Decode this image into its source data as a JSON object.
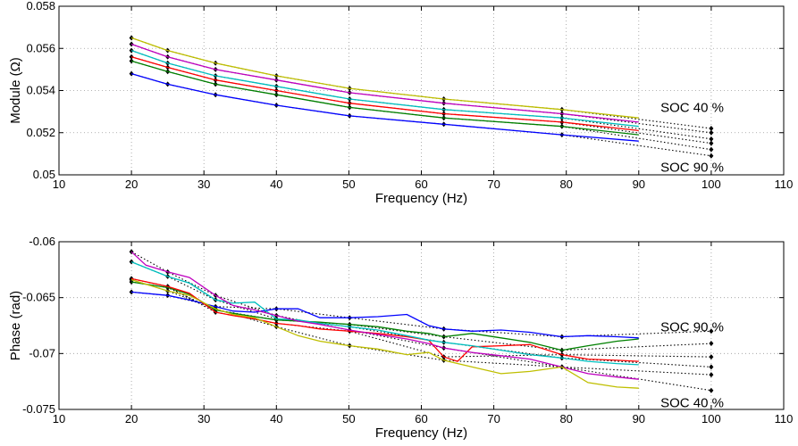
{
  "chart_data": [
    {
      "type": "line",
      "ylabel": "Module (Ω)",
      "xlabel": "Frequency (Hz)",
      "xlim": [
        10,
        110
      ],
      "ylim": [
        0.05,
        0.058
      ],
      "xticks": [
        "10",
        "20",
        "30",
        "40",
        "50",
        "60",
        "70",
        "80",
        "90",
        "100",
        "110"
      ],
      "yticks": [
        "0.05",
        "0.052",
        "0.054",
        "0.056",
        "0.058"
      ],
      "grid": true,
      "annotations": [
        {
          "text": "SOC 40 %",
          "x": 93,
          "y": 0.0532
        },
        {
          "text": "SOC 90 %",
          "x": 93,
          "y": 0.05035
        }
      ],
      "marker_x": [
        20,
        25,
        31.6,
        40,
        50.1,
        63.1,
        79.4,
        100
      ],
      "series": [
        {
          "color": "#bfbf00",
          "x": [
            20,
            25,
            31.6,
            40,
            50.1,
            63.1,
            79.4,
            90
          ],
          "values": [
            0.0565,
            0.0559,
            0.0553,
            0.0547,
            0.0541,
            0.0536,
            0.0531,
            0.0527
          ]
        },
        {
          "color": "#bf00bf",
          "x": [
            20,
            25,
            31.6,
            40,
            50.1,
            63.1,
            79.4,
            90
          ],
          "values": [
            0.0562,
            0.0556,
            0.055,
            0.0545,
            0.0539,
            0.0534,
            0.0529,
            0.0525
          ]
        },
        {
          "color": "#00bfbf",
          "x": [
            20,
            25,
            31.6,
            40,
            50.1,
            63.1,
            79.4,
            90
          ],
          "values": [
            0.0559,
            0.0553,
            0.0547,
            0.0542,
            0.0536,
            0.0531,
            0.0527,
            0.0523
          ]
        },
        {
          "color": "#ff0000",
          "x": [
            20,
            25,
            31.6,
            40,
            50.1,
            63.1,
            79.4,
            90
          ],
          "values": [
            0.0556,
            0.0551,
            0.0545,
            0.054,
            0.0534,
            0.0529,
            0.0525,
            0.0521
          ]
        },
        {
          "color": "#008000",
          "x": [
            20,
            25,
            31.6,
            40,
            50.1,
            63.1,
            79.4,
            90
          ],
          "values": [
            0.0554,
            0.0549,
            0.0543,
            0.0538,
            0.0532,
            0.0527,
            0.0523,
            0.0519
          ]
        },
        {
          "color": "#0000ff",
          "x": [
            20,
            25,
            31.6,
            40,
            50.1,
            63.1,
            79.4,
            90
          ],
          "values": [
            0.0548,
            0.0543,
            0.0538,
            0.0533,
            0.0528,
            0.0524,
            0.0519,
            0.0516
          ]
        }
      ],
      "extrapolated_values_100": [
        0.0522,
        0.052,
        0.0517,
        0.0515,
        0.0512,
        0.0509
      ]
    },
    {
      "type": "line",
      "ylabel": "Phase (rad)",
      "xlabel": "Frequency (Hz)",
      "xlim": [
        10,
        110
      ],
      "ylim": [
        -0.075,
        -0.06
      ],
      "xticks": [
        "10",
        "20",
        "30",
        "40",
        "50",
        "60",
        "70",
        "80",
        "90",
        "100",
        "110"
      ],
      "yticks": [
        "-0.06",
        "-0.065",
        "-0.07",
        "-0.075"
      ],
      "grid": true,
      "annotations": [
        {
          "text": "SOC 90 %",
          "x": 93,
          "y": -0.0676
        },
        {
          "text": "SOC 40 %",
          "x": 93,
          "y": -0.0744
        }
      ],
      "marker_x": [
        20,
        25,
        31.6,
        40,
        50.1,
        63.1,
        79.4,
        100
      ],
      "series": [
        {
          "color": "#0000ff",
          "x": [
            20,
            25,
            28,
            31.6,
            34,
            37,
            40,
            43,
            46,
            50.1,
            54,
            58,
            61,
            63.1,
            67,
            71,
            75,
            79.4,
            83,
            87,
            90
          ],
          "values": [
            -0.0645,
            -0.0648,
            -0.0652,
            -0.0658,
            -0.0662,
            -0.0663,
            -0.066,
            -0.066,
            -0.0668,
            -0.0668,
            -0.0667,
            -0.0665,
            -0.0675,
            -0.0678,
            -0.068,
            -0.0679,
            -0.0681,
            -0.0685,
            -0.0684,
            -0.0685,
            -0.0686
          ]
        },
        {
          "color": "#008000",
          "x": [
            20,
            25,
            28,
            31.6,
            34,
            37,
            40,
            43,
            46,
            50.1,
            54,
            58,
            61,
            63.1,
            67,
            71,
            75,
            79.4,
            83,
            87,
            90
          ],
          "values": [
            -0.0636,
            -0.0641,
            -0.0647,
            -0.0661,
            -0.0664,
            -0.0667,
            -0.067,
            -0.0671,
            -0.0672,
            -0.0674,
            -0.0676,
            -0.068,
            -0.0682,
            -0.0685,
            -0.0682,
            -0.0686,
            -0.069,
            -0.0697,
            -0.0693,
            -0.0689,
            -0.0687
          ]
        },
        {
          "color": "#ff0000",
          "x": [
            20,
            25,
            28,
            31.6,
            34,
            37,
            40,
            43,
            46,
            50.1,
            54,
            58,
            61,
            63.1,
            65,
            67,
            71,
            75,
            79.4,
            83,
            87,
            90
          ],
          "values": [
            -0.0633,
            -0.064,
            -0.0646,
            -0.0663,
            -0.0666,
            -0.0669,
            -0.0673,
            -0.0675,
            -0.0678,
            -0.068,
            -0.0682,
            -0.0685,
            -0.0688,
            -0.0703,
            -0.0707,
            -0.0694,
            -0.0693,
            -0.0692,
            -0.0701,
            -0.0705,
            -0.0706,
            -0.0707
          ]
        },
        {
          "color": "#00bfbf",
          "x": [
            20,
            25,
            28,
            31.6,
            34,
            37,
            40,
            43,
            46,
            50.1,
            54,
            58,
            61,
            63.1,
            67,
            71,
            75,
            79.4,
            83,
            87,
            90
          ],
          "values": [
            -0.0618,
            -0.0631,
            -0.0637,
            -0.0652,
            -0.0655,
            -0.0654,
            -0.0669,
            -0.067,
            -0.0673,
            -0.0676,
            -0.0679,
            -0.0684,
            -0.0688,
            -0.069,
            -0.0693,
            -0.0697,
            -0.0701,
            -0.0704,
            -0.0707,
            -0.0709,
            -0.071
          ]
        },
        {
          "color": "#bf00bf",
          "x": [
            20,
            22,
            25,
            28,
            31.6,
            34,
            37,
            40,
            43,
            46,
            50.1,
            54,
            58,
            61,
            63.1,
            67,
            71,
            75,
            79.4,
            83,
            87,
            90
          ],
          "values": [
            -0.0609,
            -0.0621,
            -0.0627,
            -0.0632,
            -0.0648,
            -0.0657,
            -0.0661,
            -0.0666,
            -0.0671,
            -0.0674,
            -0.0679,
            -0.0683,
            -0.0687,
            -0.0691,
            -0.0695,
            -0.0699,
            -0.0702,
            -0.0705,
            -0.0712,
            -0.0718,
            -0.0721,
            -0.0723
          ]
        },
        {
          "color": "#bfbf00",
          "x": [
            20,
            25,
            28,
            31.6,
            34,
            37,
            40,
            43,
            46,
            50.1,
            54,
            58,
            61,
            63.1,
            67,
            71,
            75,
            79.4,
            83,
            87,
            90
          ],
          "values": [
            -0.0634,
            -0.0644,
            -0.0648,
            -0.066,
            -0.0665,
            -0.0668,
            -0.0676,
            -0.0684,
            -0.0689,
            -0.0693,
            -0.0696,
            -0.0701,
            -0.0699,
            -0.0706,
            -0.0712,
            -0.0718,
            -0.0716,
            -0.0712,
            -0.0726,
            -0.073,
            -0.0731
          ]
        }
      ],
      "extrapolated_values_100": [
        -0.068,
        -0.0691,
        -0.0703,
        -0.0712,
        -0.0719,
        -0.0733
      ]
    }
  ]
}
